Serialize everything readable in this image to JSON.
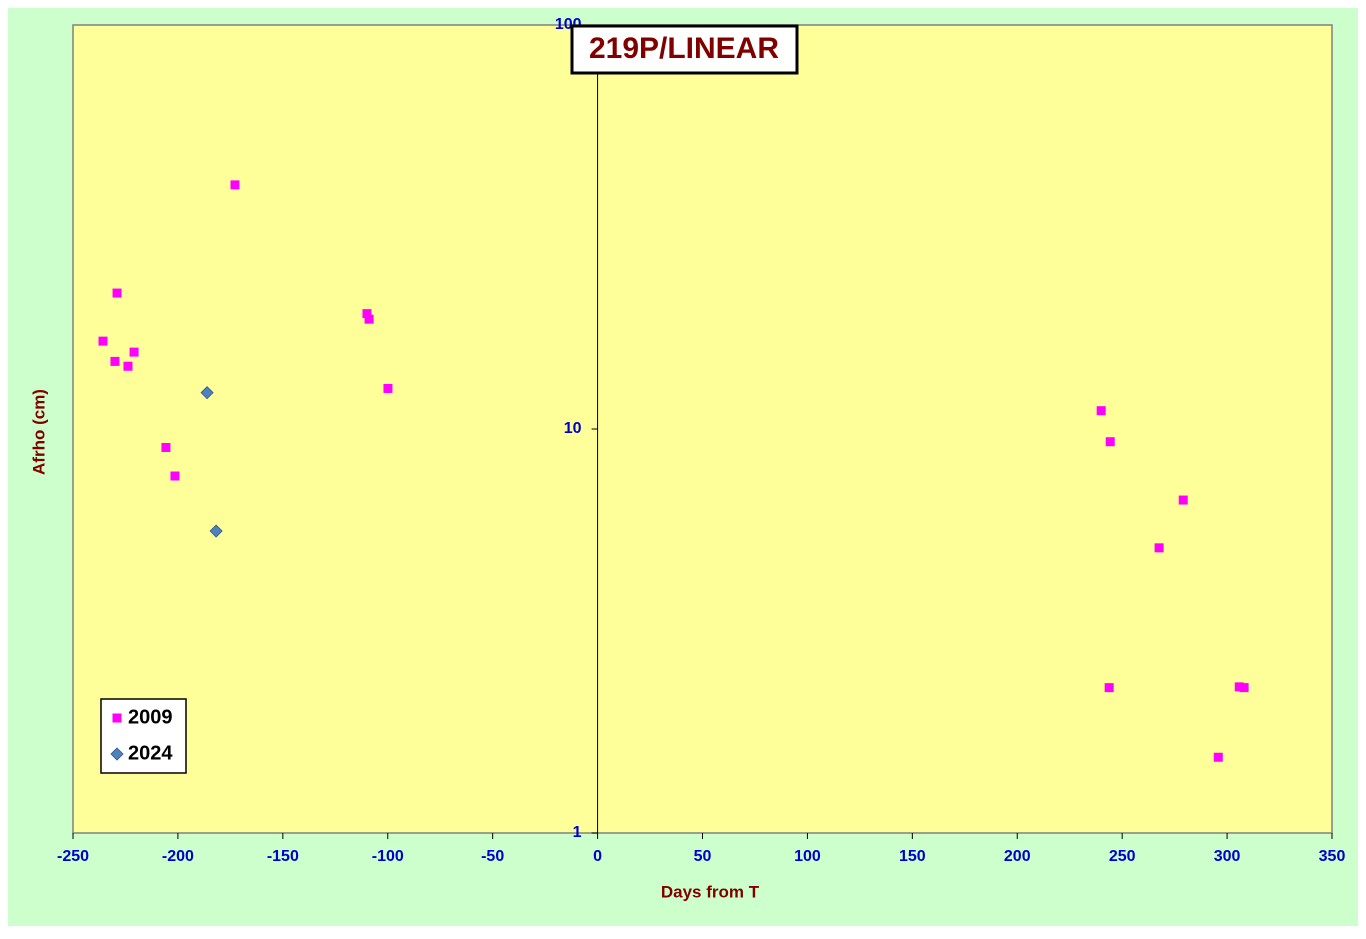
{
  "chart_data": {
    "type": "scatter",
    "title": "219P/LINEAR",
    "x_label": "Days from T",
    "y_label": "Afrho (cm)",
    "xlim": [
      -250,
      350
    ],
    "xticks": [
      -250,
      -200,
      -150,
      -100,
      -50,
      0,
      50,
      100,
      150,
      200,
      250,
      300,
      350
    ],
    "ylim": [
      1,
      100
    ],
    "yticks": [
      1,
      10,
      100
    ],
    "y_scale": "log",
    "legend": "lower left",
    "series": [
      {
        "name": "2009",
        "color": "#ff00ff",
        "marker": "square",
        "x": [
          -235.7,
          -229.0,
          -230.0,
          -223.8,
          -220.9,
          -205.7,
          -201.4,
          -172.8,
          -109.9,
          -108.9,
          -99.9,
          240.0,
          244.3,
          279.1,
          267.6,
          243.8,
          305.8,
          308.1,
          295.8
        ],
        "values": [
          16.5,
          21.7,
          14.7,
          14.3,
          15.5,
          9.0,
          7.65,
          40.2,
          19.3,
          18.7,
          12.6,
          11.1,
          9.3,
          6.67,
          5.08,
          2.29,
          2.3,
          2.29,
          1.54
        ]
      },
      {
        "name": "2024",
        "color": "#4f81bd",
        "marker": "diamond",
        "x": [
          -186.1,
          -181.8
        ],
        "values": [
          12.3,
          5.59
        ]
      }
    ]
  }
}
